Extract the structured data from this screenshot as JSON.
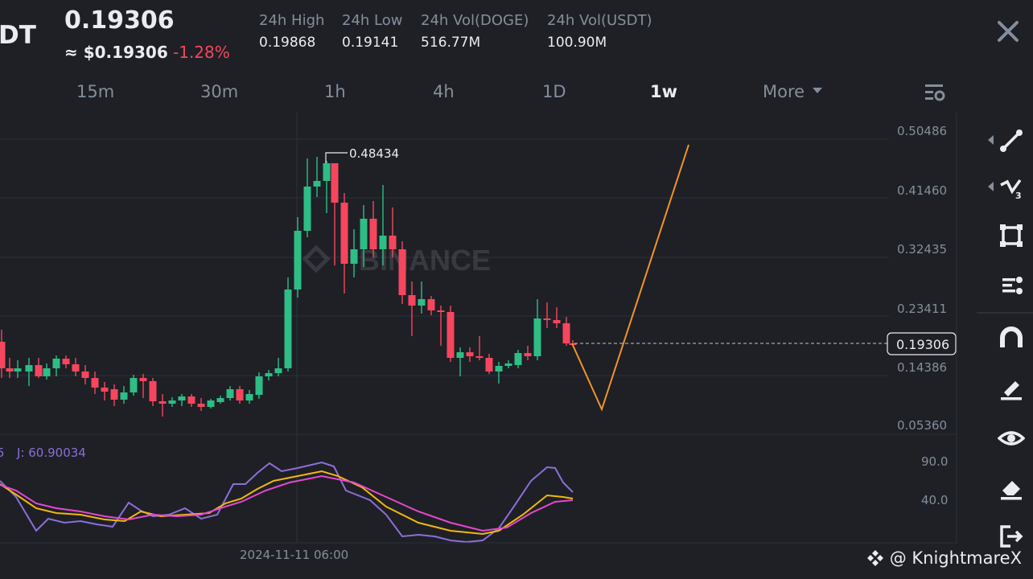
{
  "header": {
    "symbol_fragment": "DT",
    "last_price": "0.19306",
    "approx_usd": "≈ $0.19306",
    "change_pct": "-1.28%",
    "stats": [
      {
        "label": "24h High",
        "value": "0.19868"
      },
      {
        "label": "24h Low",
        "value": "0.19141"
      },
      {
        "label": "24h Vol(DOGE)",
        "value": "516.77M"
      },
      {
        "label": "24h Vol(USDT)",
        "value": "100.90M"
      }
    ]
  },
  "intervals": {
    "items": [
      "15m",
      "30m",
      "1h",
      "4h",
      "1D",
      "1w",
      "More"
    ],
    "active": "1w"
  },
  "price_axis": {
    "ticks": [
      "0.50486",
      "0.41460",
      "0.32435",
      "0.23411",
      "0.14386",
      "0.05360"
    ],
    "current_price": "0.19306"
  },
  "chart_annotations": {
    "high_marker": "0.48434",
    "exchange_watermark": "BINANCE"
  },
  "indicator": {
    "j_label": "J: 60.90034",
    "ticks": [
      "90.0",
      "40.0"
    ]
  },
  "time_axis": {
    "label": "2024-11-11 06:00"
  },
  "colors": {
    "up": "#2ebd85",
    "down": "#f6465d",
    "bg": "#1e2026",
    "forecast_line": "#f0952a",
    "k_line": "#f0b90b",
    "d_line": "#e647d1",
    "j_line": "#8d6ed8"
  },
  "toolbar": {
    "icons": [
      "trend-line-icon",
      "multi-line-icon",
      "rectangle-icon",
      "fib-levels-icon",
      "magnet-icon",
      "brush-icon",
      "eye-icon",
      "eraser-icon",
      "exit-icon"
    ]
  },
  "watermark": {
    "handle": "@ KnightmareX"
  }
}
